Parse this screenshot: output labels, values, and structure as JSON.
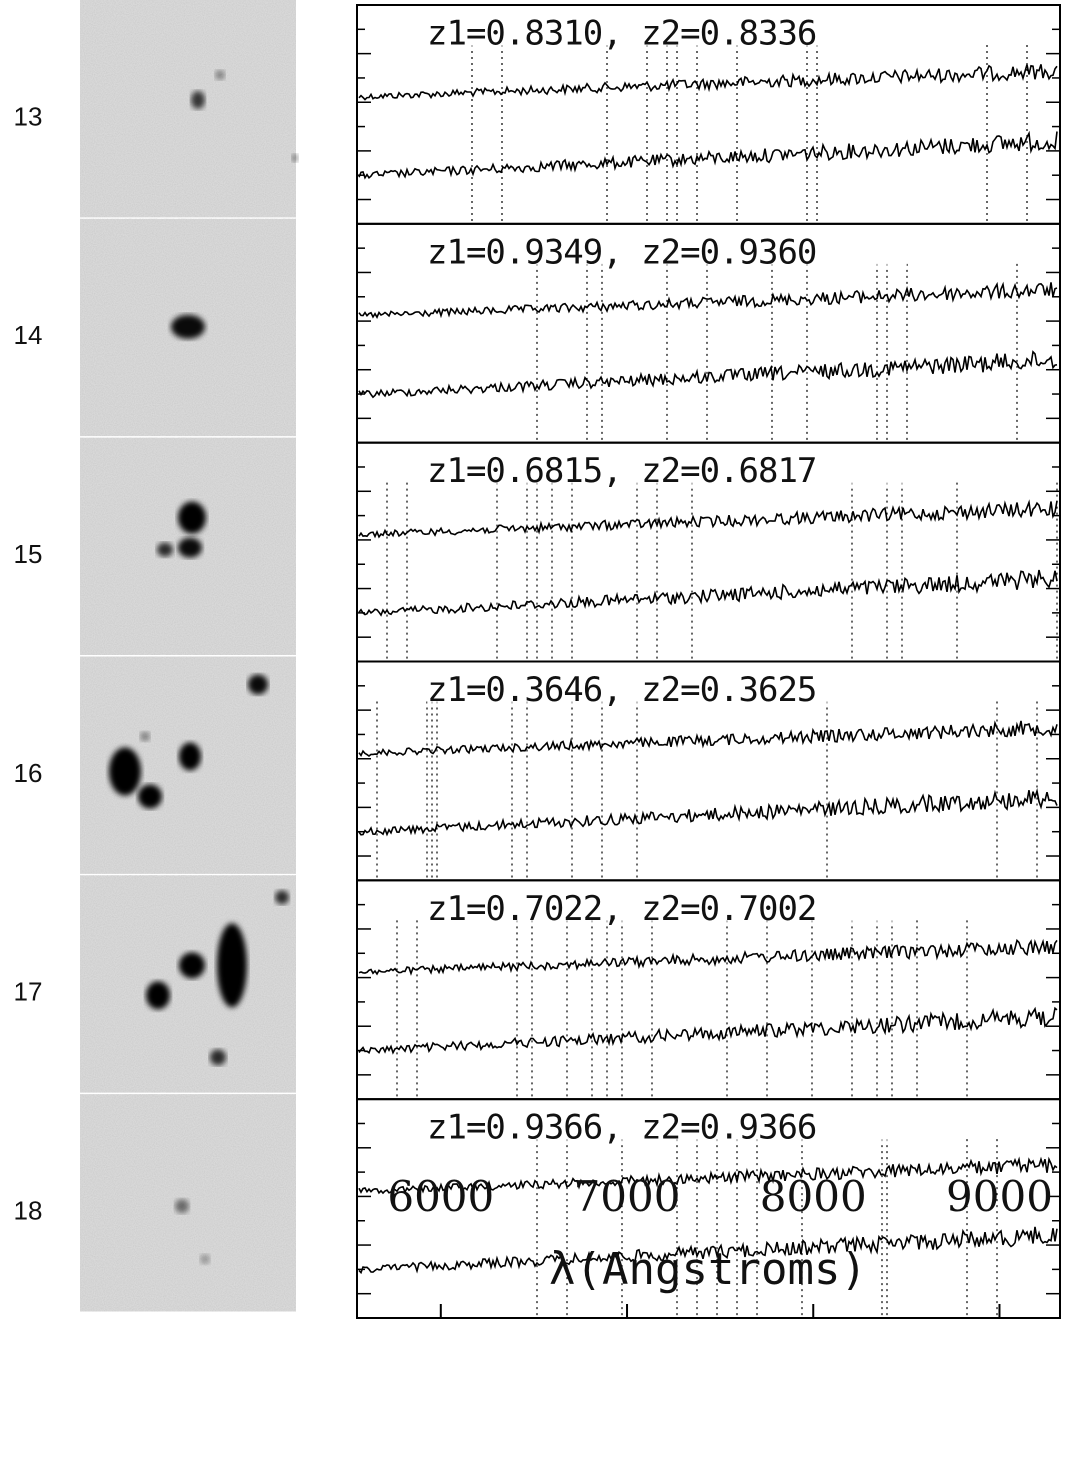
{
  "panels": [
    {
      "label": "13",
      "redshift": "z1=0.8310, z2=0.8336"
    },
    {
      "label": "14",
      "redshift": "z1=0.9349, z2=0.9360"
    },
    {
      "label": "15",
      "redshift": "z1=0.6815, z2=0.6817"
    },
    {
      "label": "16",
      "redshift": "z1=0.3646, z2=0.3625"
    },
    {
      "label": "17",
      "redshift": "z1=0.7022, z2=0.7002"
    },
    {
      "label": "18",
      "redshift": "z1=0.9366, z2=0.9366"
    }
  ],
  "x_axis": {
    "label": "λ(Angstroms)",
    "xlim": [
      5550,
      9325
    ],
    "xticks": [
      6000,
      7000,
      8000,
      9000
    ]
  }
}
